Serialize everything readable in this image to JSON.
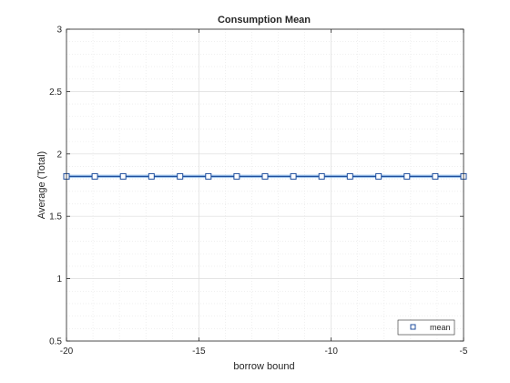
{
  "chart_data": {
    "type": "line",
    "title": "Consumption Mean",
    "xlabel": "borrow bound",
    "ylabel": "Average (Total)",
    "xlim": [
      -20,
      -5
    ],
    "ylim": [
      0.5,
      3
    ],
    "xticks": [
      -20,
      -15,
      -10,
      -5
    ],
    "yticks": [
      0.5,
      1,
      1.5,
      2,
      2.5,
      3
    ],
    "xtick_labels": [
      "-20",
      "-15",
      "-10",
      "-5"
    ],
    "ytick_labels": [
      "0.5",
      "1",
      "1.5",
      "2",
      "2.5",
      "3"
    ],
    "grid": true,
    "minor_grid": true,
    "legend_position": "bottom-right",
    "series": [
      {
        "name": "mean",
        "color": "#1f4e9c",
        "marker": "square",
        "x": [
          -20,
          -18.93,
          -17.86,
          -16.79,
          -15.71,
          -14.64,
          -13.57,
          -12.5,
          -11.43,
          -10.36,
          -9.29,
          -8.21,
          -7.14,
          -6.07,
          -5
        ],
        "y": [
          1.82,
          1.82,
          1.82,
          1.82,
          1.82,
          1.82,
          1.82,
          1.82,
          1.82,
          1.82,
          1.82,
          1.82,
          1.82,
          1.82,
          1.82
        ]
      }
    ]
  }
}
